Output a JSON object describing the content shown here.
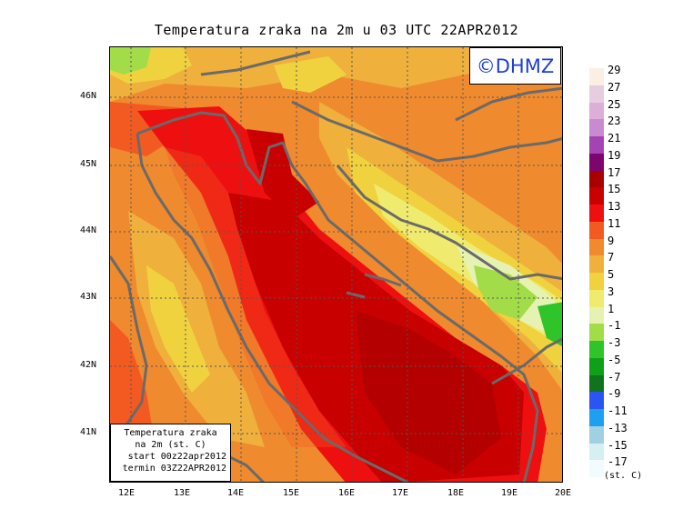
{
  "title": "Temperatura zraka na 2m u 03 UTC 22APR2012",
  "badge": "©DHMZ",
  "info_box": {
    "line1": "Temperatura zraka",
    "line2": "na 2m (st. C)",
    "line3": "start 00z22apr2012",
    "line4": "termin 03Z22APR2012"
  },
  "lat_ticks": [
    "46N",
    "45N",
    "44N",
    "43N",
    "42N",
    "41N"
  ],
  "lon_ticks": [
    "12E",
    "13E",
    "14E",
    "15E",
    "16E",
    "17E",
    "18E",
    "19E",
    "20E"
  ],
  "legend": {
    "unit": "(st. C)",
    "levels": [
      {
        "label": "29",
        "color": "#fbeee2"
      },
      {
        "label": "27",
        "color": "#e6cde0"
      },
      {
        "label": "25",
        "color": "#dcaed8"
      },
      {
        "label": "23",
        "color": "#c98bd0"
      },
      {
        "label": "21",
        "color": "#a444b3"
      },
      {
        "label": "19",
        "color": "#7d0570"
      },
      {
        "label": "17",
        "color": "#a80000"
      },
      {
        "label": "15",
        "color": "#c80000"
      },
      {
        "label": "13",
        "color": "#ee1010"
      },
      {
        "label": "11",
        "color": "#f35a22"
      },
      {
        "label": "9",
        "color": "#ef8a2e"
      },
      {
        "label": "7",
        "color": "#efb03c"
      },
      {
        "label": "5",
        "color": "#f0d23e"
      },
      {
        "label": "3",
        "color": "#efeb6e"
      },
      {
        "label": "1",
        "color": "#e6f2b2"
      },
      {
        "label": "-1",
        "color": "#a2dc48"
      },
      {
        "label": "-3",
        "color": "#2fc52a"
      },
      {
        "label": "-5",
        "color": "#0fa019"
      },
      {
        "label": "-7",
        "color": "#10731e"
      },
      {
        "label": "-9",
        "color": "#2b55f2"
      },
      {
        "label": "-11",
        "color": "#1f9ff0"
      },
      {
        "label": "-13",
        "color": "#9fd1e2"
      },
      {
        "label": "-15",
        "color": "#d6eff3"
      },
      {
        "label": "-17",
        "color": "#f2fbfd"
      }
    ]
  },
  "colors": {
    "sea_warm": "#c80000",
    "sea_hot": "#a80000",
    "coast": "#6a6a6a",
    "grid": "#555555"
  }
}
